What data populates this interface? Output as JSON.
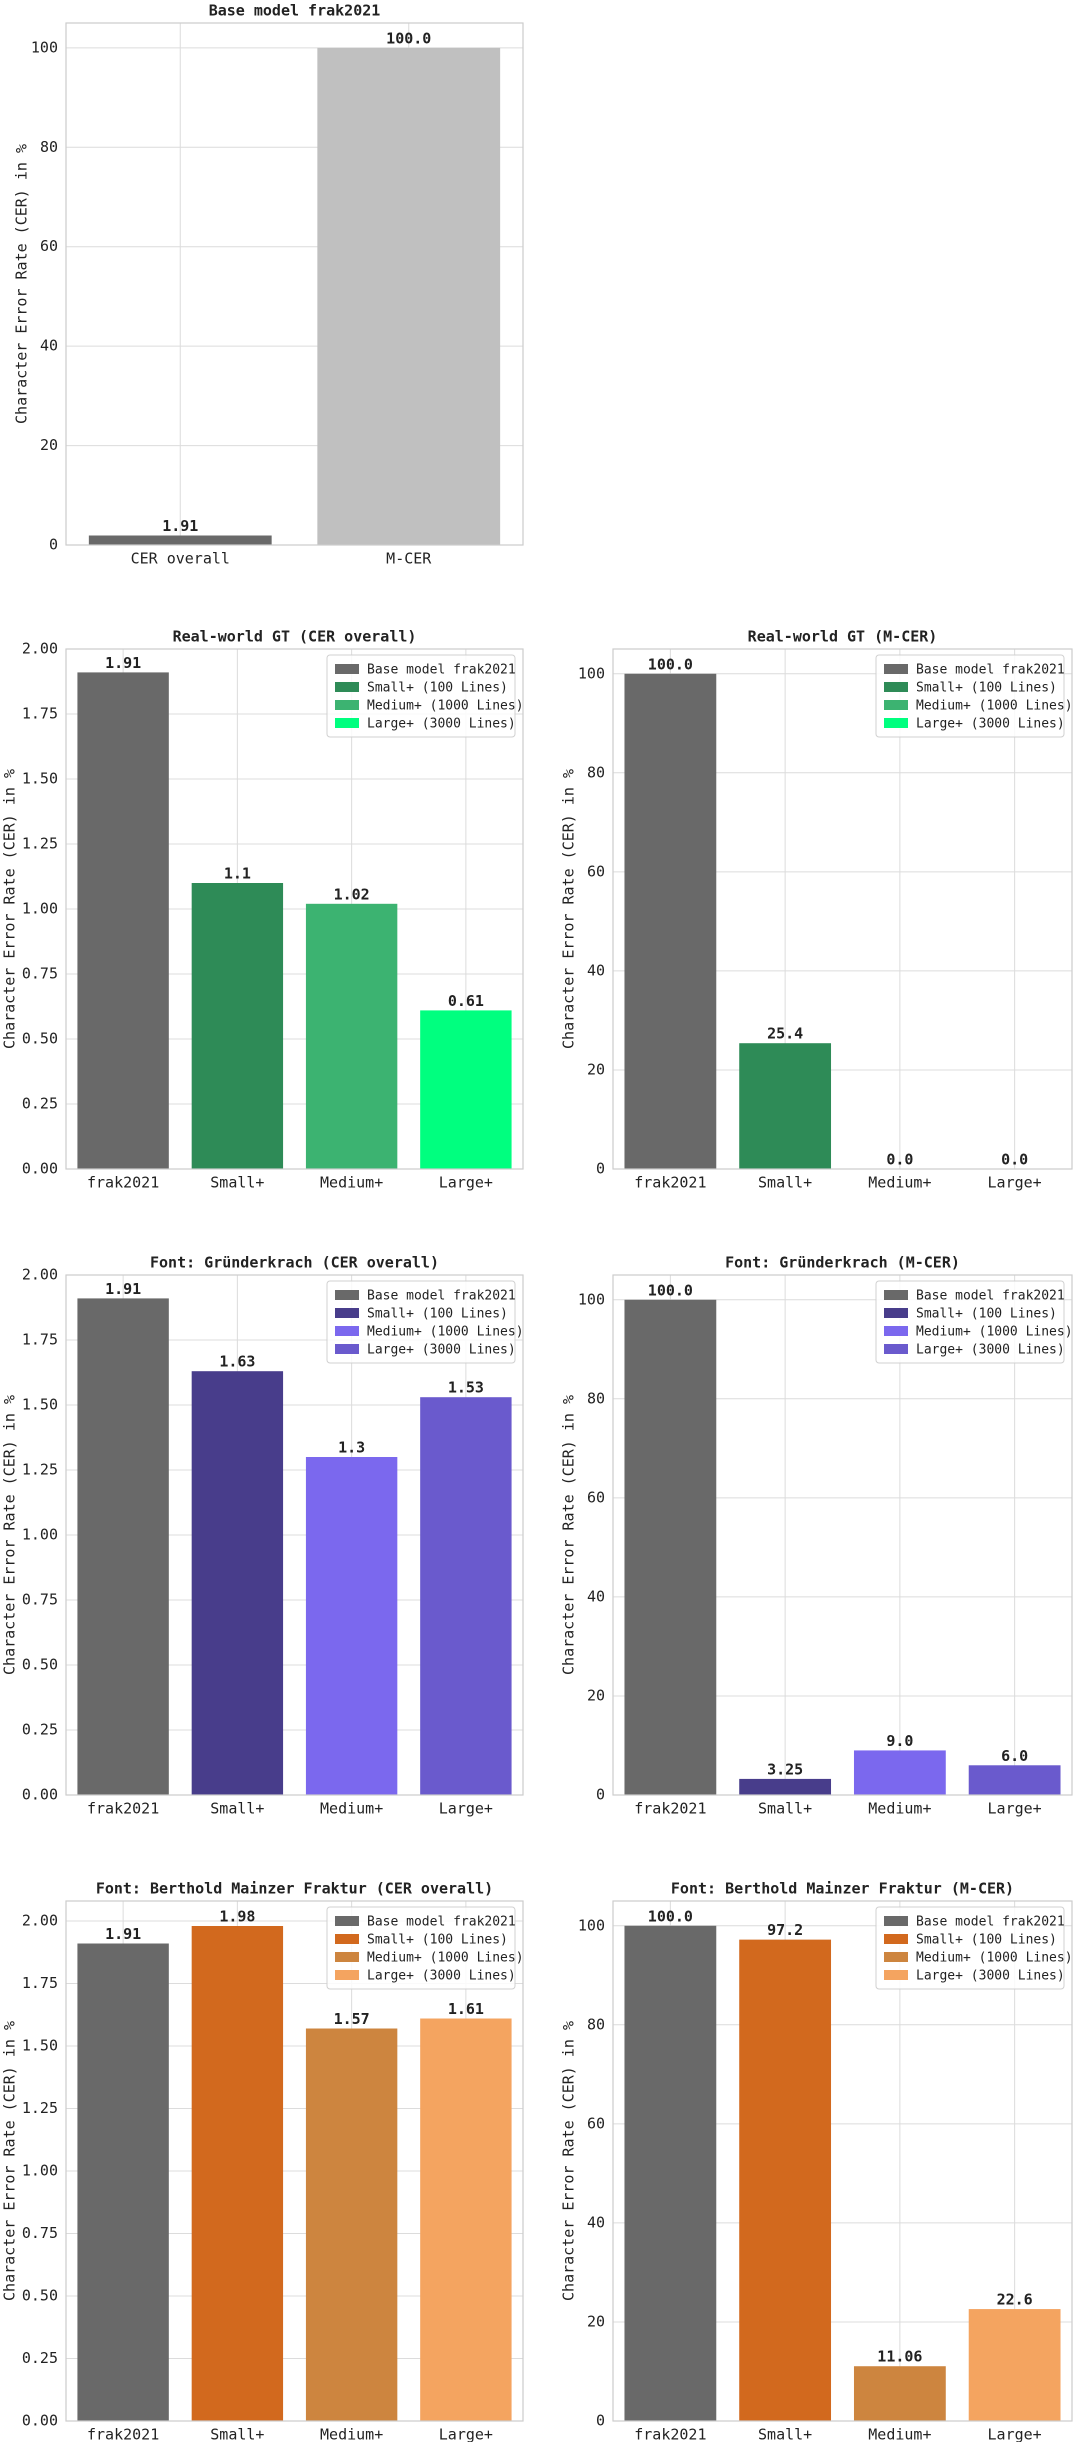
{
  "chart_data": [
    {
      "type": "bar",
      "title": "Base model frak2021",
      "ylabel": "Character Error Rate (CER) in %",
      "categories": [
        "CER overall",
        "M-CER"
      ],
      "values": [
        1.91,
        100.0
      ],
      "value_labels": [
        "1.91",
        "100.0"
      ],
      "colors": [
        "#696969",
        "#c0c0c0"
      ],
      "ylim": [
        0,
        105
      ],
      "yticks": [
        0,
        20,
        40,
        60,
        80,
        100
      ],
      "grid": true
    },
    {
      "type": "bar",
      "title": "Real-world GT (CER overall)",
      "ylabel": "Character Error Rate (CER) in %",
      "categories": [
        "frak2021",
        "Small+",
        "Medium+",
        "Large+"
      ],
      "values": [
        1.91,
        1.1,
        1.02,
        0.61
      ],
      "colors": [
        "#696969",
        "#2e8b57",
        "#3cb371",
        "#00ff7f"
      ],
      "legend": [
        "Base model frak2021",
        "Small+ (100 Lines)",
        "Medium+ (1000 Lines)",
        "Large+ (3000 Lines)"
      ],
      "legend_loc": "upper right",
      "ylim": [
        0,
        2.0
      ],
      "yticks": [
        {
          "value": 0,
          "label": "0.00"
        },
        {
          "value": 0.25,
          "label": "0.25"
        },
        {
          "value": 0.5,
          "label": "0.50"
        },
        {
          "value": 0.75,
          "label": "0.75"
        },
        {
          "value": 1,
          "label": "1.00"
        },
        {
          "value": 1.25,
          "label": "1.25"
        },
        {
          "value": 1.5,
          "label": "1.50"
        },
        {
          "value": 1.75,
          "label": "1.75"
        },
        {
          "value": 2,
          "label": "2.00"
        }
      ],
      "grid": true
    },
    {
      "type": "bar",
      "title": "Real-world GT (M-CER)",
      "ylabel": "Character Error Rate (CER) in %",
      "categories": [
        "frak2021",
        "Small+",
        "Medium+",
        "Large+"
      ],
      "values": [
        100.0,
        25.4,
        0.0,
        0.0
      ],
      "value_labels": [
        "100.0",
        "25.4",
        "0.0",
        "0.0"
      ],
      "colors": [
        "#696969",
        "#2e8b57",
        "#3cb371",
        "#00ff7f"
      ],
      "legend": [
        "Base model frak2021",
        "Small+ (100 Lines)",
        "Medium+ (1000 Lines)",
        "Large+ (3000 Lines)"
      ],
      "legend_loc": "upper right",
      "ylim": [
        0,
        105
      ],
      "yticks": [
        0,
        20,
        40,
        60,
        80,
        100
      ],
      "grid": true
    },
    {
      "type": "bar",
      "title": "Font: Gründerkrach (CER overall)",
      "ylabel": "Character Error Rate (CER) in %",
      "categories": [
        "frak2021",
        "Small+",
        "Medium+",
        "Large+"
      ],
      "values": [
        1.91,
        1.63,
        1.3,
        1.53
      ],
      "colors": [
        "#696969",
        "#483d8b",
        "#7b68ee",
        "#6a5acd"
      ],
      "legend": [
        "Base model frak2021",
        "Small+ (100 Lines)",
        "Medium+ (1000 Lines)",
        "Large+ (3000 Lines)"
      ],
      "legend_loc": "upper right",
      "ylim": [
        0,
        2.0
      ],
      "yticks": [
        {
          "value": 0,
          "label": "0.00"
        },
        {
          "value": 0.25,
          "label": "0.25"
        },
        {
          "value": 0.5,
          "label": "0.50"
        },
        {
          "value": 0.75,
          "label": "0.75"
        },
        {
          "value": 1,
          "label": "1.00"
        },
        {
          "value": 1.25,
          "label": "1.25"
        },
        {
          "value": 1.5,
          "label": "1.50"
        },
        {
          "value": 1.75,
          "label": "1.75"
        },
        {
          "value": 2,
          "label": "2.00"
        }
      ],
      "grid": true
    },
    {
      "type": "bar",
      "title": "Font: Gründerkrach (M-CER)",
      "ylabel": "Character Error Rate (CER) in %",
      "categories": [
        "frak2021",
        "Small+",
        "Medium+",
        "Large+"
      ],
      "values": [
        100.0,
        3.25,
        9.0,
        6.0
      ],
      "value_labels": [
        "100.0",
        "3.25",
        "9.0",
        "6.0"
      ],
      "colors": [
        "#696969",
        "#483d8b",
        "#7b68ee",
        "#6a5acd"
      ],
      "legend": [
        "Base model frak2021",
        "Small+ (100 Lines)",
        "Medium+ (1000 Lines)",
        "Large+ (3000 Lines)"
      ],
      "legend_loc": "upper right",
      "ylim": [
        0,
        105
      ],
      "yticks": [
        0,
        20,
        40,
        60,
        80,
        100
      ],
      "grid": true
    },
    {
      "type": "bar",
      "title": "Font: Berthold Mainzer Fraktur (CER overall)",
      "ylabel": "Character Error Rate (CER) in %",
      "categories": [
        "frak2021",
        "Small+",
        "Medium+",
        "Large+"
      ],
      "values": [
        1.91,
        1.98,
        1.57,
        1.61
      ],
      "colors": [
        "#696969",
        "#d2691e",
        "#cd853f",
        "#f4a460"
      ],
      "legend": [
        "Base model frak2021",
        "Small+ (100 Lines)",
        "Medium+ (1000 Lines)",
        "Large+ (3000 Lines)"
      ],
      "legend_loc": "upper right",
      "ylim": [
        0,
        2.08
      ],
      "yticks": [
        {
          "value": 0,
          "label": "0.00"
        },
        {
          "value": 0.25,
          "label": "0.25"
        },
        {
          "value": 0.5,
          "label": "0.50"
        },
        {
          "value": 0.75,
          "label": "0.75"
        },
        {
          "value": 1,
          "label": "1.00"
        },
        {
          "value": 1.25,
          "label": "1.25"
        },
        {
          "value": 1.5,
          "label": "1.50"
        },
        {
          "value": 1.75,
          "label": "1.75"
        },
        {
          "value": 2,
          "label": "2.00"
        }
      ],
      "grid": true
    },
    {
      "type": "bar",
      "title": "Font: Berthold Mainzer Fraktur (M-CER)",
      "ylabel": "Character Error Rate (CER) in %",
      "categories": [
        "frak2021",
        "Small+",
        "Medium+",
        "Large+"
      ],
      "values": [
        100.0,
        97.2,
        11.06,
        22.6
      ],
      "value_labels": [
        "100.0",
        "97.2",
        "11.06",
        "22.6"
      ],
      "colors": [
        "#696969",
        "#d2691e",
        "#cd853f",
        "#f4a460"
      ],
      "legend": [
        "Base model frak2021",
        "Small+ (100 Lines)",
        "Medium+ (1000 Lines)",
        "Large+ (3000 Lines)"
      ],
      "legend_loc": "upper right",
      "ylim": [
        0,
        105
      ],
      "yticks": [
        0,
        20,
        40,
        60,
        80,
        100
      ],
      "grid": true
    }
  ]
}
